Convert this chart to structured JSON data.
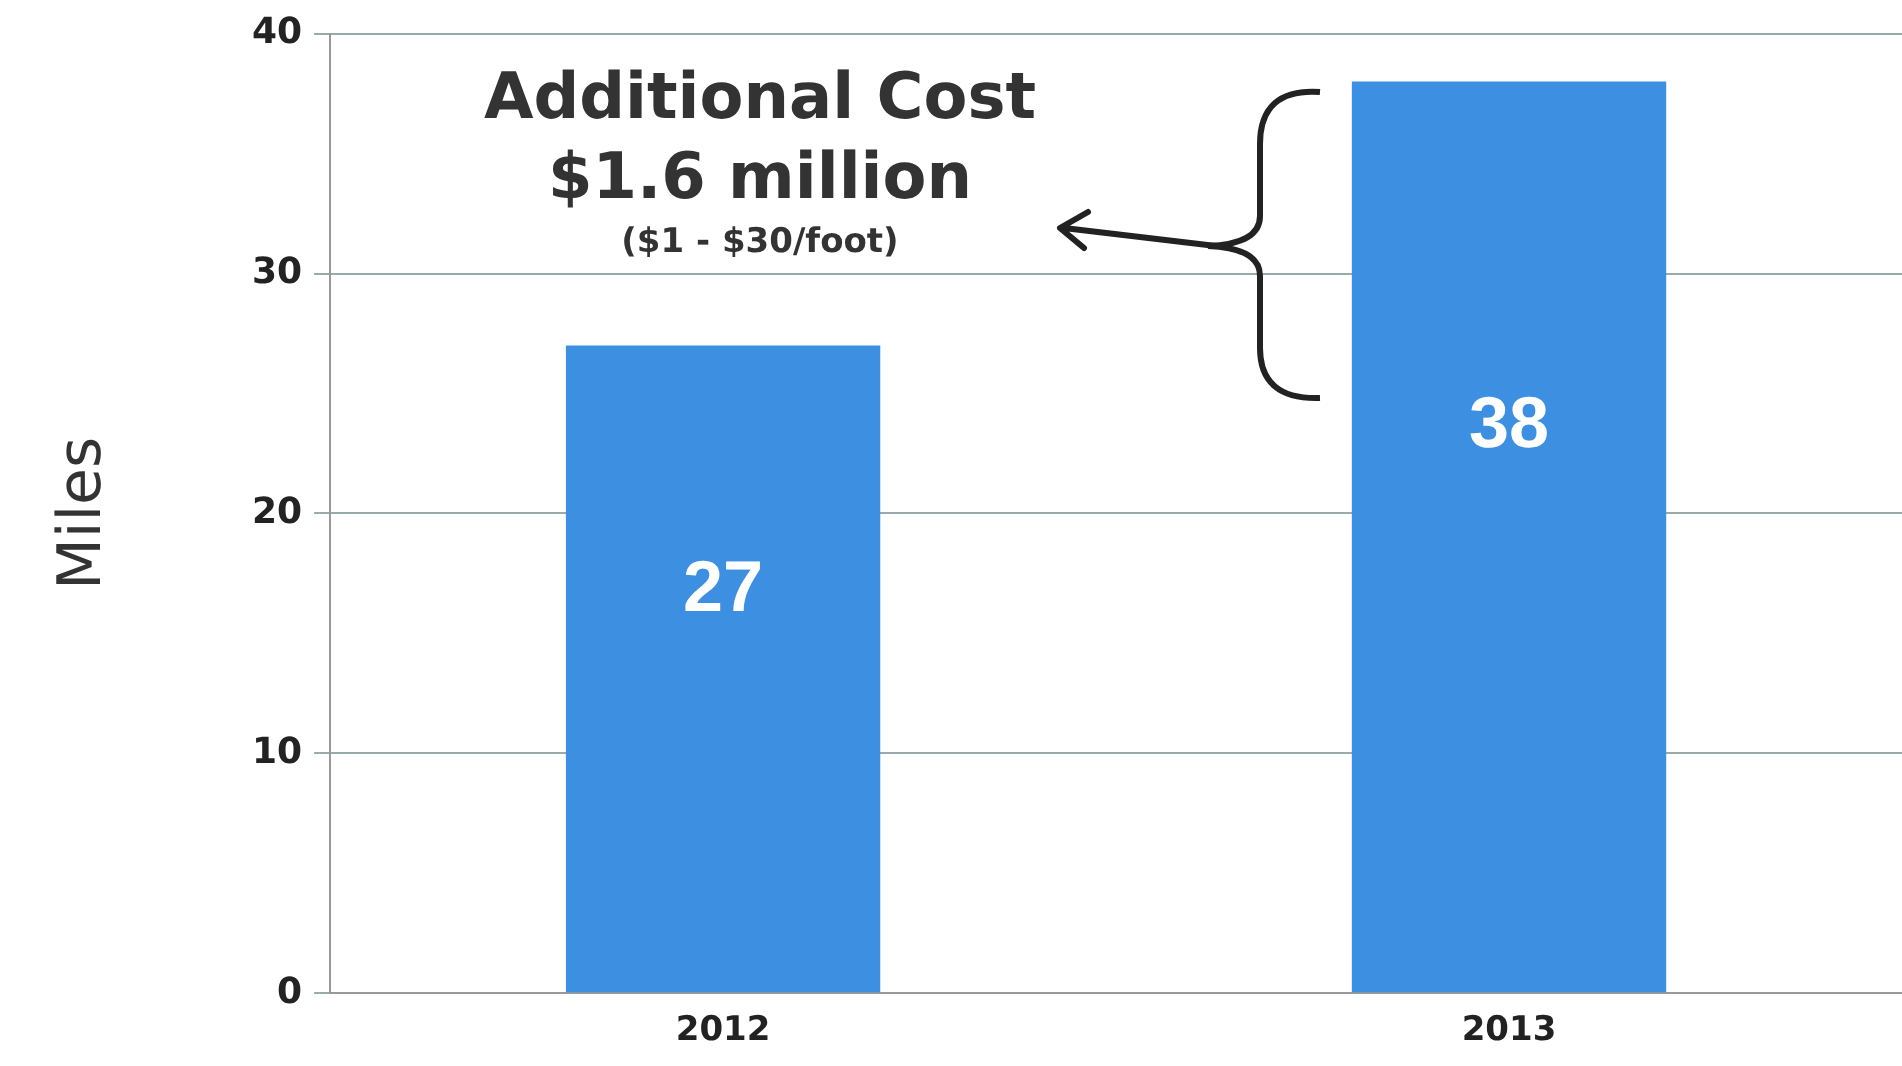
{
  "chart_data": {
    "type": "bar",
    "ylabel": "Miles",
    "categories": [
      "2012",
      "2013"
    ],
    "values": [
      27,
      38
    ],
    "color": "#3d8fe2",
    "ylim": [
      0,
      40
    ],
    "yticks": [
      0,
      10,
      20,
      30,
      40
    ],
    "grid": "y",
    "data_labels": true,
    "annotations": [
      "Additional Cost",
      "$1.6 million",
      "($1 - $30/foot)"
    ]
  }
}
